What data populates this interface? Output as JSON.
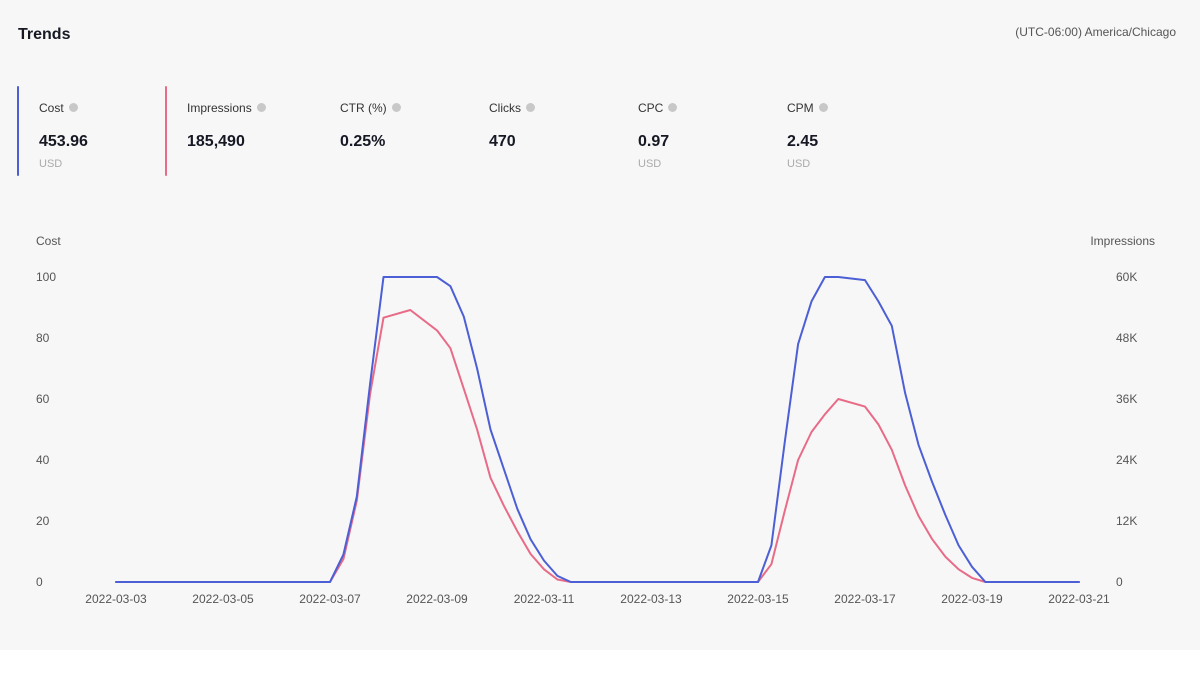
{
  "header": {
    "title": "Trends",
    "timezone": "(UTC-06:00) America/Chicago"
  },
  "metrics": [
    {
      "label": "Cost",
      "value": "453.96",
      "unit": "USD",
      "color": "#4c5fd5"
    },
    {
      "label": "Impressions",
      "value": "185,490",
      "unit": "",
      "color": "#e86b87"
    },
    {
      "label": "CTR (%)",
      "value": "0.25%",
      "unit": ""
    },
    {
      "label": "Clicks",
      "value": "470",
      "unit": ""
    },
    {
      "label": "CPC",
      "value": "0.97",
      "unit": "USD"
    },
    {
      "label": "CPM",
      "value": "2.45",
      "unit": "USD"
    }
  ],
  "chart_data": {
    "type": "line",
    "left_axis_label": "Cost",
    "right_axis_label": "Impressions",
    "y_left_ticks": [
      "0",
      "20",
      "40",
      "60",
      "80",
      "100"
    ],
    "y_right_ticks": [
      "0",
      "12K",
      "24K",
      "36K",
      "48K",
      "60K"
    ],
    "ylim_left": [
      0,
      100
    ],
    "ylim_right": [
      0,
      60000
    ],
    "x_tick_labels": [
      "2022-03-03",
      "2022-03-05",
      "2022-03-07",
      "2022-03-09",
      "2022-03-11",
      "2022-03-13",
      "2022-03-15",
      "2022-03-17",
      "2022-03-19",
      "2022-03-21"
    ],
    "grid": false,
    "series": [
      {
        "name": "Cost",
        "axis": "left",
        "color": "#4c5fd5",
        "points": [
          [
            "2022-03-03 00:00",
            0
          ],
          [
            "2022-03-07 00:00",
            0
          ],
          [
            "2022-03-07 06:00",
            9
          ],
          [
            "2022-03-07 12:00",
            28
          ],
          [
            "2022-03-07 18:00",
            65
          ],
          [
            "2022-03-08 00:00",
            100
          ],
          [
            "2022-03-08 12:00",
            100
          ],
          [
            "2022-03-09 00:00",
            100
          ],
          [
            "2022-03-09 06:00",
            97
          ],
          [
            "2022-03-09 12:00",
            87
          ],
          [
            "2022-03-09 18:00",
            70
          ],
          [
            "2022-03-10 00:00",
            50
          ],
          [
            "2022-03-10 06:00",
            37
          ],
          [
            "2022-03-10 12:00",
            24
          ],
          [
            "2022-03-10 18:00",
            14
          ],
          [
            "2022-03-11 00:00",
            7
          ],
          [
            "2022-03-11 06:00",
            2
          ],
          [
            "2022-03-11 12:00",
            0
          ],
          [
            "2022-03-15 00:00",
            0
          ],
          [
            "2022-03-15 06:00",
            12
          ],
          [
            "2022-03-15 12:00",
            46
          ],
          [
            "2022-03-15 18:00",
            78
          ],
          [
            "2022-03-16 00:00",
            92
          ],
          [
            "2022-03-16 06:00",
            100
          ],
          [
            "2022-03-16 12:00",
            100
          ],
          [
            "2022-03-17 00:00",
            99
          ],
          [
            "2022-03-17 06:00",
            92
          ],
          [
            "2022-03-17 12:00",
            84
          ],
          [
            "2022-03-17 18:00",
            62
          ],
          [
            "2022-03-18 00:00",
            45
          ],
          [
            "2022-03-18 06:00",
            33
          ],
          [
            "2022-03-18 12:00",
            22
          ],
          [
            "2022-03-18 18:00",
            12
          ],
          [
            "2022-03-19 00:00",
            5
          ],
          [
            "2022-03-19 06:00",
            0
          ],
          [
            "2022-03-21 00:00",
            0
          ]
        ]
      },
      {
        "name": "Impressions",
        "axis": "right",
        "color": "#e86b87",
        "points": [
          [
            "2022-03-03 00:00",
            0
          ],
          [
            "2022-03-07 00:00",
            0
          ],
          [
            "2022-03-07 06:00",
            4500
          ],
          [
            "2022-03-07 12:00",
            16000
          ],
          [
            "2022-03-07 18:00",
            37000
          ],
          [
            "2022-03-08 00:00",
            52000
          ],
          [
            "2022-03-08 12:00",
            53500
          ],
          [
            "2022-03-09 00:00",
            49500
          ],
          [
            "2022-03-09 06:00",
            46000
          ],
          [
            "2022-03-09 12:00",
            38000
          ],
          [
            "2022-03-09 18:00",
            30000
          ],
          [
            "2022-03-10 00:00",
            20500
          ],
          [
            "2022-03-10 06:00",
            15000
          ],
          [
            "2022-03-10 12:00",
            10000
          ],
          [
            "2022-03-10 18:00",
            5500
          ],
          [
            "2022-03-11 00:00",
            2500
          ],
          [
            "2022-03-11 06:00",
            500
          ],
          [
            "2022-03-11 12:00",
            0
          ],
          [
            "2022-03-15 00:00",
            0
          ],
          [
            "2022-03-15 06:00",
            3500
          ],
          [
            "2022-03-15 12:00",
            14000
          ],
          [
            "2022-03-15 18:00",
            24000
          ],
          [
            "2022-03-16 00:00",
            29500
          ],
          [
            "2022-03-16 06:00",
            33000
          ],
          [
            "2022-03-16 12:00",
            36000
          ],
          [
            "2022-03-17 00:00",
            34500
          ],
          [
            "2022-03-17 06:00",
            31000
          ],
          [
            "2022-03-17 12:00",
            26000
          ],
          [
            "2022-03-17 18:00",
            19000
          ],
          [
            "2022-03-18 00:00",
            13000
          ],
          [
            "2022-03-18 06:00",
            8500
          ],
          [
            "2022-03-18 12:00",
            5000
          ],
          [
            "2022-03-18 18:00",
            2500
          ],
          [
            "2022-03-19 00:00",
            800
          ],
          [
            "2022-03-19 06:00",
            0
          ],
          [
            "2022-03-21 00:00",
            0
          ]
        ]
      }
    ]
  }
}
